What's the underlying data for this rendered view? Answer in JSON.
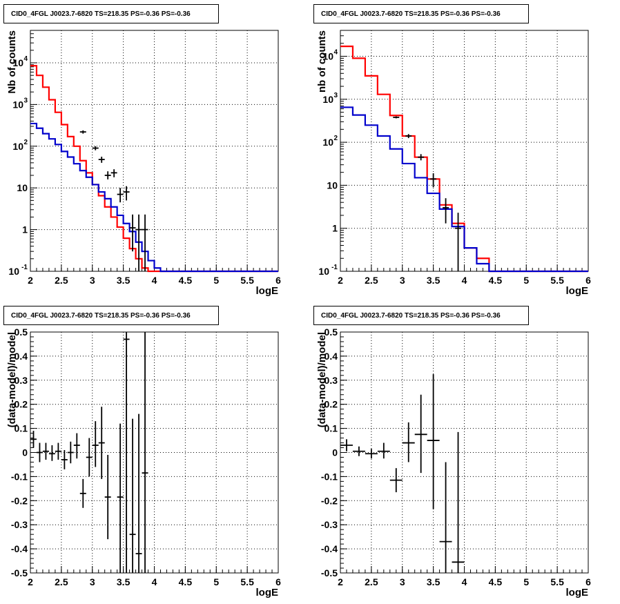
{
  "pads": [
    {
      "title": "CID0_4FGL J0023.7-6820 TS=218.35 PS=-0.36 PS=-0.36",
      "xlabel": "logE",
      "ylabel": "Nb of counts"
    },
    {
      "title": "CID0_4FGL J0023.7-6820 TS=218.35 PS=-0.36 PS=-0.36",
      "xlabel": "logE",
      "ylabel": "nb of counts"
    },
    {
      "title": "CID0_4FGL J0023.7-6820 TS=218.35 PS=-0.36 PS=-0.36",
      "xlabel": "logE",
      "ylabel": "(data-model)/model"
    },
    {
      "title": "CID0_4FGL J0023.7-6820 TS=218.35 PS=-0.36 PS=-0.36",
      "xlabel": "logE",
      "ylabel": "(data-model)/model"
    }
  ],
  "colors": {
    "total_model": "#ff0000",
    "source_model": "#0000cc",
    "data": "#000000"
  },
  "chart_data": [
    {
      "type": "line",
      "scale_y": "log",
      "xlim": [
        2,
        6
      ],
      "ylim": [
        0.1,
        60000
      ],
      "grid": true,
      "x_ticks": [
        "2",
        "2.5",
        "3",
        "3.5",
        "4",
        "4.5",
        "5",
        "5.5",
        "6"
      ],
      "y_ticks": [
        "10^-1",
        "1",
        "10",
        "10^2",
        "10^3",
        "10^4"
      ],
      "bin_edges": [
        2.0,
        2.1,
        2.2,
        2.3,
        2.4,
        2.5,
        2.6,
        2.7,
        2.8,
        2.9,
        3.0,
        3.1,
        3.2,
        3.3,
        3.4,
        3.5,
        3.6,
        3.7,
        3.8,
        3.9,
        4.0,
        4.1,
        4.2,
        4.3,
        4.4,
        4.5,
        4.6,
        4.7,
        4.8,
        4.9,
        5.0,
        5.1,
        5.2,
        5.3,
        5.4,
        5.5,
        5.6,
        5.7,
        5.8,
        5.9,
        6.0
      ],
      "series": [
        {
          "name": "",
          "role": "total_model",
          "style": "step",
          "values": [
            8500,
            5000,
            2600,
            1300,
            650,
            330,
            170,
            100,
            45,
            23,
            12,
            6.5,
            3.5,
            2.0,
            1.15,
            0.62,
            0.35,
            0.2,
            0.12,
            0.1,
            0.1,
            0.1,
            0.1,
            0.1,
            0.1,
            0.1,
            0.1,
            0.1,
            0.1,
            0.1,
            0.1,
            0.1,
            0.1,
            0.1,
            0.1,
            0.1,
            0.1,
            0.1,
            0.1,
            0.1
          ]
        },
        {
          "name": "",
          "role": "source_model",
          "style": "step",
          "values": [
            350,
            270,
            200,
            150,
            110,
            75,
            55,
            38,
            26,
            18,
            12,
            8,
            5.5,
            3.5,
            2.2,
            1.4,
            0.9,
            0.5,
            0.3,
            0.18,
            0.12,
            0.1,
            0.1,
            0.1,
            0.1,
            0.1,
            0.1,
            0.1,
            0.1,
            0.1,
            0.1,
            0.1,
            0.1,
            0.1,
            0.1,
            0.1,
            0.1,
            0.1,
            0.1,
            0.1
          ]
        },
        {
          "name": "",
          "role": "data",
          "style": "errorbar",
          "points": [
            {
              "x": 2.85,
              "y": 220,
              "lo": 200,
              "hi": 240
            },
            {
              "x": 3.05,
              "y": 90,
              "lo": 80,
              "hi": 100
            },
            {
              "x": 3.15,
              "y": 48,
              "lo": 40,
              "hi": 56
            },
            {
              "x": 3.25,
              "y": 20,
              "lo": 16,
              "hi": 25
            },
            {
              "x": 3.35,
              "y": 23,
              "lo": 18,
              "hi": 28
            },
            {
              "x": 3.45,
              "y": 7,
              "lo": 4.5,
              "hi": 10
            },
            {
              "x": 3.55,
              "y": 8,
              "lo": 5,
              "hi": 11
            },
            {
              "x": 3.65,
              "y": 1.1,
              "lo": 0.3,
              "hi": 2.3
            },
            {
              "x": 3.75,
              "y": 1.0,
              "lo": 0.1,
              "hi": 2.3
            },
            {
              "x": 3.85,
              "y": 1.0,
              "lo": 0.1,
              "hi": 2.3
            }
          ]
        }
      ]
    },
    {
      "type": "line",
      "scale_y": "log",
      "xlim": [
        2,
        6
      ],
      "ylim": [
        0.1,
        40000
      ],
      "grid": true,
      "x_ticks": [
        "2",
        "2.5",
        "3",
        "3.5",
        "4",
        "4.5",
        "5",
        "5.5",
        "6"
      ],
      "y_ticks": [
        "10^-1",
        "1",
        "10",
        "10^2",
        "10^3",
        "10^4"
      ],
      "bin_edges": [
        2.0,
        2.2,
        2.4,
        2.6,
        2.8,
        3.0,
        3.2,
        3.4,
        3.6,
        3.8,
        4.0,
        4.2,
        4.4,
        4.6,
        4.8,
        5.0,
        5.2,
        5.4,
        5.6,
        5.8,
        6.0
      ],
      "series": [
        {
          "name": "",
          "role": "total_model",
          "style": "step",
          "values": [
            17000,
            9000,
            3500,
            1300,
            420,
            140,
            45,
            14,
            3.5,
            1.3,
            0.35,
            0.2,
            0.1,
            0.1,
            0.1,
            0.1,
            0.1,
            0.1,
            0.1,
            0.1
          ]
        },
        {
          "name": "",
          "role": "source_model",
          "style": "step",
          "values": [
            650,
            430,
            250,
            140,
            70,
            32,
            15,
            6.5,
            2.8,
            1.1,
            0.35,
            0.15,
            0.1,
            0.1,
            0.1,
            0.1,
            0.1,
            0.1,
            0.1,
            0.1
          ]
        },
        {
          "name": "",
          "role": "data",
          "style": "errorbar",
          "points": [
            {
              "x": 2.9,
              "y": 380,
              "lo": 360,
              "hi": 400
            },
            {
              "x": 3.1,
              "y": 140,
              "lo": 125,
              "hi": 155
            },
            {
              "x": 3.3,
              "y": 45,
              "lo": 38,
              "hi": 53
            },
            {
              "x": 3.5,
              "y": 14,
              "lo": 9,
              "hi": 19
            },
            {
              "x": 3.7,
              "y": 3,
              "lo": 1.3,
              "hi": 5
            },
            {
              "x": 3.9,
              "y": 1,
              "lo": 0.1,
              "hi": 2.3
            }
          ]
        }
      ]
    },
    {
      "type": "scatter",
      "xlim": [
        2,
        6
      ],
      "ylim": [
        -0.5,
        0.5
      ],
      "grid": true,
      "x_ticks": [
        "2",
        "2.5",
        "3",
        "3.5",
        "4",
        "4.5",
        "5",
        "5.5",
        "6"
      ],
      "y_ticks": [
        "-0.5",
        "-0.4",
        "-0.3",
        "-0.2",
        "-0.1",
        "0",
        "0.1",
        "0.2",
        "0.3",
        "0.4",
        "0.5"
      ],
      "series": [
        {
          "name": "",
          "role": "data",
          "style": "errorbar",
          "xerr": 0.05,
          "points": [
            {
              "x": 2.05,
              "y": 0.055,
              "lo": 0.02,
              "hi": 0.09
            },
            {
              "x": 2.15,
              "y": 0.0,
              "lo": -0.04,
              "hi": 0.04
            },
            {
              "x": 2.25,
              "y": 0.005,
              "lo": -0.03,
              "hi": 0.04
            },
            {
              "x": 2.35,
              "y": -0.005,
              "lo": -0.035,
              "hi": 0.03
            },
            {
              "x": 2.45,
              "y": 0.005,
              "lo": -0.03,
              "hi": 0.04
            },
            {
              "x": 2.55,
              "y": -0.03,
              "lo": -0.07,
              "hi": 0.01
            },
            {
              "x": 2.65,
              "y": 0.0,
              "lo": -0.045,
              "hi": 0.045
            },
            {
              "x": 2.75,
              "y": 0.03,
              "lo": -0.025,
              "hi": 0.08
            },
            {
              "x": 2.85,
              "y": -0.17,
              "lo": -0.23,
              "hi": -0.11
            },
            {
              "x": 2.95,
              "y": -0.02,
              "lo": -0.1,
              "hi": 0.06
            },
            {
              "x": 3.05,
              "y": 0.03,
              "lo": -0.06,
              "hi": 0.13
            },
            {
              "x": 3.15,
              "y": 0.04,
              "lo": -0.11,
              "hi": 0.19
            },
            {
              "x": 3.25,
              "y": -0.185,
              "lo": -0.36,
              "hi": -0.01
            },
            {
              "x": 3.45,
              "y": -0.185,
              "lo": -0.5,
              "hi": 0.12
            },
            {
              "x": 3.55,
              "y": 0.47,
              "lo": -0.5,
              "hi": 0.5
            },
            {
              "x": 3.65,
              "y": -0.34,
              "lo": -0.5,
              "hi": 0.14
            },
            {
              "x": 3.75,
              "y": -0.42,
              "lo": -0.5,
              "hi": 0.16
            },
            {
              "x": 3.85,
              "y": -0.085,
              "lo": -0.5,
              "hi": 0.5
            }
          ]
        }
      ]
    },
    {
      "type": "scatter",
      "xlim": [
        2,
        6
      ],
      "ylim": [
        -0.5,
        0.5
      ],
      "grid": true,
      "x_ticks": [
        "2",
        "2.5",
        "3",
        "3.5",
        "4",
        "4.5",
        "5",
        "5.5",
        "6"
      ],
      "y_ticks": [
        "-0.5",
        "-0.4",
        "-0.3",
        "-0.2",
        "-0.1",
        "0",
        "0.1",
        "0.2",
        "0.3",
        "0.4",
        "0.5"
      ],
      "series": [
        {
          "name": "",
          "role": "data",
          "style": "errorbar",
          "xerr": 0.1,
          "points": [
            {
              "x": 2.1,
              "y": 0.03,
              "lo": 0.005,
              "hi": 0.055
            },
            {
              "x": 2.3,
              "y": 0.005,
              "lo": -0.015,
              "hi": 0.025
            },
            {
              "x": 2.5,
              "y": -0.005,
              "lo": -0.025,
              "hi": 0.015
            },
            {
              "x": 2.7,
              "y": 0.005,
              "lo": -0.025,
              "hi": 0.04
            },
            {
              "x": 2.9,
              "y": -0.115,
              "lo": -0.165,
              "hi": -0.065
            },
            {
              "x": 3.1,
              "y": 0.04,
              "lo": -0.04,
              "hi": 0.125
            },
            {
              "x": 3.3,
              "y": 0.075,
              "lo": -0.085,
              "hi": 0.24
            },
            {
              "x": 3.5,
              "y": 0.05,
              "lo": -0.235,
              "hi": 0.325
            },
            {
              "x": 3.7,
              "y": -0.37,
              "lo": -0.5,
              "hi": -0.04
            },
            {
              "x": 3.9,
              "y": -0.455,
              "lo": -0.5,
              "hi": 0.085
            }
          ]
        }
      ]
    }
  ]
}
